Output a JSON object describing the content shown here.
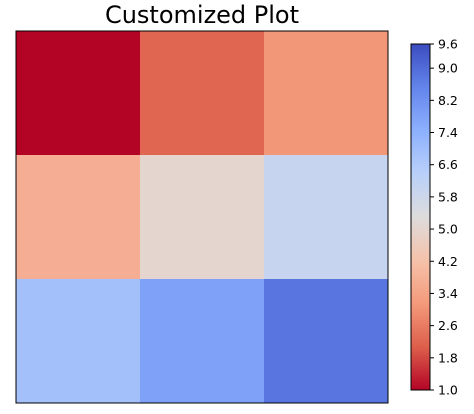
{
  "chart_data": {
    "type": "heatmap",
    "title": "Customized Plot",
    "rows": 3,
    "cols": 3,
    "values": [
      [
        1.0,
        2.2,
        3.1
      ],
      [
        3.7,
        5.0,
        6.0
      ],
      [
        6.9,
        7.8,
        8.8
      ]
    ],
    "colormap": "coolwarm (reversed)",
    "color_range": [
      1.0,
      9.6
    ],
    "colorbar": {
      "position": "right",
      "ticks": [
        "1.0",
        "1.8",
        "2.6",
        "3.4",
        "4.2",
        "5.0",
        "5.8",
        "6.6",
        "7.4",
        "8.2",
        "9.0",
        "9.6"
      ],
      "tick_values": [
        1.0,
        1.8,
        2.6,
        3.4,
        4.2,
        5.0,
        5.8,
        6.6,
        7.4,
        8.2,
        9.0,
        9.6
      ]
    },
    "axis_ticks": "none",
    "grid": false
  }
}
